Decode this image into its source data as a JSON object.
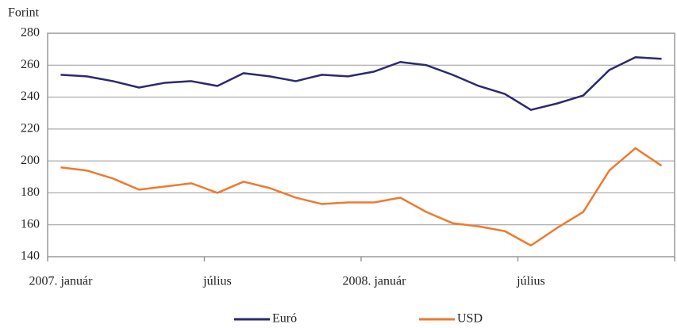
{
  "chart_data": {
    "type": "line",
    "y_label": "Forint",
    "categories": [
      "2007. január",
      null,
      null,
      null,
      null,
      null,
      "július",
      null,
      null,
      null,
      null,
      null,
      "2008. január",
      null,
      null,
      null,
      null,
      null,
      "július",
      null,
      null,
      null,
      null,
      null
    ],
    "series": [
      {
        "name": "Euró",
        "color": "#2b2a6e",
        "values": [
          254,
          253,
          250,
          246,
          249,
          250,
          247,
          255,
          253,
          250,
          254,
          253,
          256,
          262,
          260,
          254,
          247,
          242,
          232,
          236,
          241,
          257,
          265,
          264
        ]
      },
      {
        "name": "USD",
        "color": "#ee7a2f",
        "values": [
          196,
          194,
          189,
          182,
          184,
          186,
          180,
          187,
          183,
          177,
          173,
          174,
          174,
          177,
          168,
          161,
          159,
          156,
          147,
          158,
          168,
          194,
          208,
          197
        ]
      }
    ],
    "ylim": [
      140,
      280
    ],
    "yticks": [
      140,
      160,
      180,
      200,
      220,
      240,
      260,
      280
    ],
    "grid": true,
    "legend": "bottom"
  }
}
